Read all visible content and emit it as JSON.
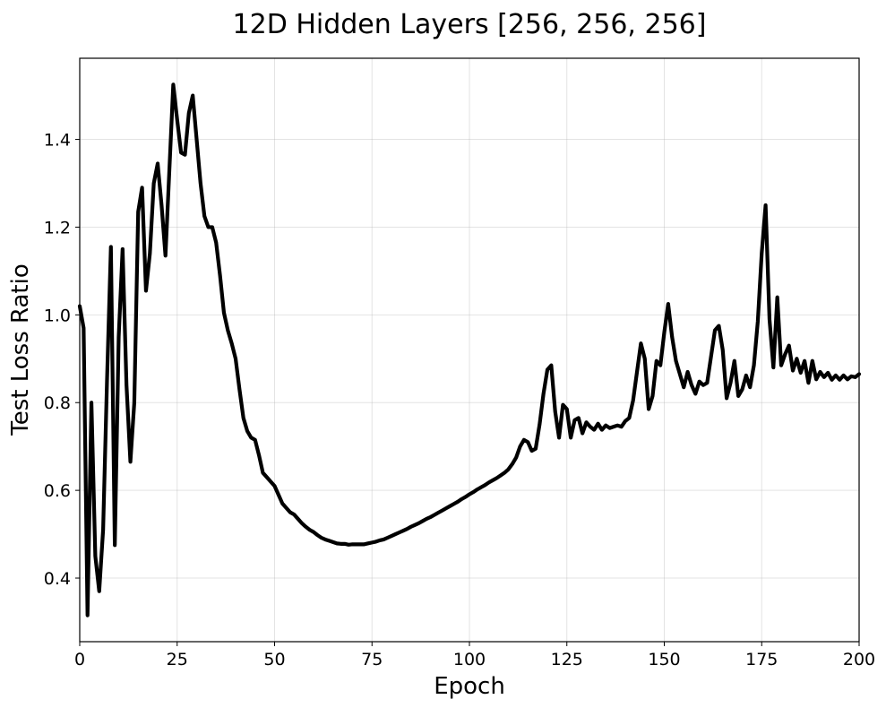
{
  "chart_data": {
    "type": "line",
    "title": "12D Hidden Layers [256, 256, 256]",
    "xlabel": "Epoch",
    "ylabel": "Test Loss Ratio",
    "xlim": [
      0,
      200
    ],
    "ylim": [
      0.255,
      1.585
    ],
    "xticks": [
      0,
      25,
      50,
      75,
      100,
      125,
      150,
      175,
      200
    ],
    "yticks": [
      0.4,
      0.6,
      0.8,
      1.0,
      1.2,
      1.4
    ],
    "ytick_labels": [
      "0.4",
      "0.6",
      "0.8",
      "1.0",
      "1.2",
      "1.4"
    ],
    "grid": true,
    "color": "#000000",
    "series": [
      {
        "x": [
          0,
          1,
          2,
          3,
          4,
          5,
          6,
          7,
          8,
          9,
          10,
          11,
          12,
          13,
          14,
          15,
          16,
          17,
          18,
          19,
          20,
          21,
          22,
          23,
          24,
          25,
          26,
          27,
          28,
          29,
          30,
          31,
          32,
          33,
          34,
          35,
          36,
          37,
          38,
          39,
          40,
          41,
          42,
          43,
          44,
          45,
          46,
          47,
          48,
          49,
          50,
          51,
          52,
          53,
          54,
          55,
          56,
          57,
          58,
          59,
          60,
          61,
          62,
          63,
          64,
          65,
          66,
          67,
          68,
          69,
          70,
          71,
          72,
          73,
          74,
          75,
          76,
          77,
          78,
          79,
          80,
          81,
          82,
          83,
          84,
          85,
          86,
          87,
          88,
          89,
          90,
          91,
          92,
          93,
          94,
          95,
          96,
          97,
          98,
          99,
          100,
          101,
          102,
          103,
          104,
          105,
          106,
          107,
          108,
          109,
          110,
          111,
          112,
          113,
          114,
          115,
          116,
          117,
          118,
          119,
          120,
          121,
          122,
          123,
          124,
          125,
          126,
          127,
          128,
          129,
          130,
          131,
          132,
          133,
          134,
          135,
          136,
          137,
          138,
          139,
          140,
          141,
          142,
          143,
          144,
          145,
          146,
          147,
          148,
          149,
          150,
          151,
          152,
          153,
          154,
          155,
          156,
          157,
          158,
          159,
          160,
          161,
          162,
          163,
          164,
          165,
          166,
          167,
          168,
          169,
          170,
          171,
          172,
          173,
          174,
          175,
          176,
          177,
          178,
          179,
          180,
          181,
          182,
          183,
          184,
          185,
          186,
          187,
          188,
          189,
          190,
          191,
          192,
          193,
          194,
          195,
          196,
          197,
          198,
          199,
          200
        ],
        "values": [
          1.02,
          0.97,
          0.315,
          0.8,
          0.45,
          0.37,
          0.51,
          0.85,
          1.155,
          0.475,
          0.95,
          1.15,
          0.84,
          0.665,
          0.8,
          1.235,
          1.29,
          1.055,
          1.14,
          1.3,
          1.345,
          1.25,
          1.135,
          1.33,
          1.525,
          1.445,
          1.37,
          1.365,
          1.46,
          1.5,
          1.4,
          1.3,
          1.225,
          1.2,
          1.2,
          1.165,
          1.09,
          1.005,
          0.965,
          0.935,
          0.9,
          0.83,
          0.765,
          0.735,
          0.72,
          0.715,
          0.68,
          0.64,
          0.63,
          0.62,
          0.61,
          0.59,
          0.57,
          0.56,
          0.55,
          0.545,
          0.535,
          0.525,
          0.517,
          0.51,
          0.505,
          0.498,
          0.492,
          0.488,
          0.485,
          0.482,
          0.479,
          0.478,
          0.478,
          0.476,
          0.477,
          0.477,
          0.477,
          0.477,
          0.479,
          0.481,
          0.483,
          0.486,
          0.488,
          0.492,
          0.496,
          0.5,
          0.504,
          0.508,
          0.512,
          0.517,
          0.521,
          0.525,
          0.53,
          0.535,
          0.539,
          0.544,
          0.549,
          0.554,
          0.559,
          0.564,
          0.569,
          0.574,
          0.58,
          0.585,
          0.591,
          0.596,
          0.602,
          0.607,
          0.612,
          0.618,
          0.623,
          0.628,
          0.634,
          0.64,
          0.648,
          0.66,
          0.675,
          0.7,
          0.715,
          0.71,
          0.69,
          0.695,
          0.75,
          0.82,
          0.875,
          0.885,
          0.78,
          0.72,
          0.795,
          0.785,
          0.72,
          0.76,
          0.765,
          0.73,
          0.755,
          0.745,
          0.738,
          0.752,
          0.738,
          0.748,
          0.742,
          0.745,
          0.748,
          0.745,
          0.758,
          0.765,
          0.805,
          0.87,
          0.935,
          0.9,
          0.785,
          0.815,
          0.895,
          0.885,
          0.96,
          1.025,
          0.95,
          0.895,
          0.865,
          0.835,
          0.87,
          0.84,
          0.82,
          0.848,
          0.84,
          0.845,
          0.905,
          0.965,
          0.975,
          0.92,
          0.81,
          0.845,
          0.895,
          0.815,
          0.83,
          0.862,
          0.835,
          0.885,
          0.985,
          1.14,
          1.25,
          0.99,
          0.88,
          1.04,
          0.885,
          0.91,
          0.93,
          0.873,
          0.9,
          0.868,
          0.895,
          0.845,
          0.895,
          0.853,
          0.87,
          0.858,
          0.868,
          0.852,
          0.862,
          0.852,
          0.862,
          0.853,
          0.86,
          0.858,
          0.865
        ]
      }
    ]
  }
}
